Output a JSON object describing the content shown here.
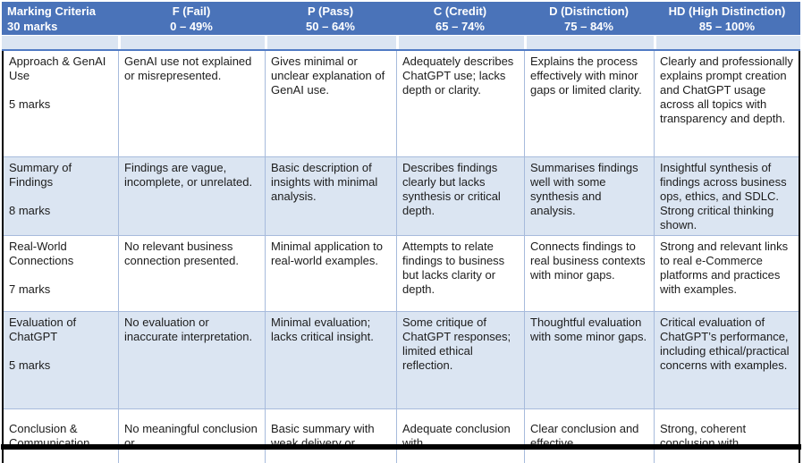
{
  "rubric": {
    "header": {
      "criteria_title": "Marking Criteria",
      "criteria_marks": "30 marks",
      "grades": [
        {
          "label": "F (Fail)",
          "range": "0 – 49%"
        },
        {
          "label": "P (Pass)",
          "range": "50 – 64%"
        },
        {
          "label": "C (Credit)",
          "range": "65 – 74%"
        },
        {
          "label": "D (Distinction)",
          "range": "75 – 84%"
        },
        {
          "label": "HD (High Distinction)",
          "range": "85 – 100%"
        }
      ]
    },
    "rows": [
      {
        "criterion": "Approach & GenAI Use",
        "marks": "5 marks",
        "cells": [
          "GenAI use not explained or misrepresented.",
          "Gives minimal or unclear explanation of GenAI use.",
          "Adequately describes ChatGPT use; lacks depth or clarity.",
          "Explains the process effectively with minor gaps or limited clarity.",
          "Clearly and professionally explains prompt creation and ChatGPT usage across all topics with transparency and depth."
        ]
      },
      {
        "criterion": "Summary of Findings",
        "marks": "8 marks",
        "cells": [
          "Findings are vague, incomplete, or unrelated.",
          "Basic description of insights with minimal analysis.",
          "Describes findings clearly but lacks synthesis or critical depth.",
          "Summarises findings well with some synthesis and analysis.",
          "Insightful synthesis of findings across business ops, ethics, and SDLC. Strong critical thinking shown."
        ]
      },
      {
        "criterion": "Real-World Connections",
        "marks": "7 marks",
        "cells": [
          "No relevant business connection presented.",
          "Minimal application to real-world examples.",
          "Attempts to relate findings to business but lacks clarity or depth.",
          "Connects findings to real business contexts with minor gaps.",
          "Strong and relevant links to real e-Commerce platforms and practices with examples."
        ]
      },
      {
        "criterion": "Evaluation of ChatGPT",
        "marks": "5 marks",
        "cells": [
          "No evaluation or inaccurate interpretation.",
          "Minimal evaluation; lacks critical insight.",
          "Some critique of ChatGPT responses; limited ethical reflection.",
          "Thoughtful evaluation with some minor gaps.",
          "Critical evaluation of ChatGPT’s performance, including ethical/practical concerns with examples."
        ]
      },
      {
        "criterion": "Conclusion & Communication",
        "marks": "",
        "cells": [
          "No meaningful conclusion or",
          "Basic summary with weak delivery or",
          "Adequate conclusion with",
          "Clear conclusion and effective",
          "Strong, coherent conclusion with"
        ]
      }
    ],
    "colors": {
      "header_bg": "#4a73b9",
      "header_text": "#ffffff",
      "band_bg": "#dbe5f2",
      "grid_line": "#a7bbdc",
      "accent_line": "#4f7ac4",
      "outer_border": "#000000"
    }
  }
}
